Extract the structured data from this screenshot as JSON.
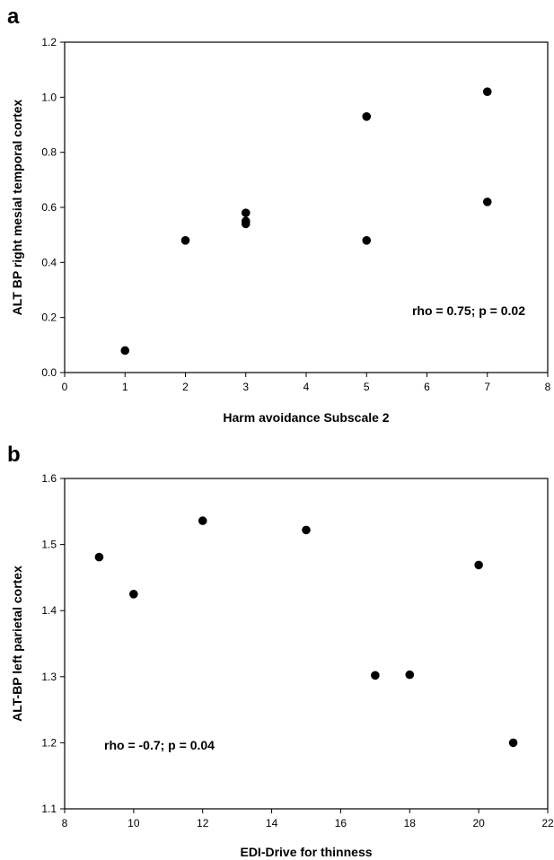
{
  "chart_data": [
    {
      "type": "scatter",
      "panel": "a",
      "xlabel": "Harm avoidance Subscale 2",
      "ylabel": "ALT BP right mesial temporal cortex",
      "xlim": [
        0,
        8
      ],
      "ylim": [
        0.0,
        1.2
      ],
      "xticks": [
        "0",
        "1",
        "2",
        "3",
        "4",
        "5",
        "6",
        "7",
        "8"
      ],
      "yticks": [
        "0.0",
        "0.2",
        "0.4",
        "0.6",
        "0.8",
        "1.0",
        "1.2"
      ],
      "annotation": "rho = 0.75; p = 0.02",
      "annotation_position": "bottom-right",
      "grid": false,
      "points": [
        {
          "x": 1,
          "y": 0.08
        },
        {
          "x": 2,
          "y": 0.48
        },
        {
          "x": 3,
          "y": 0.58
        },
        {
          "x": 3,
          "y": 0.55
        },
        {
          "x": 3,
          "y": 0.54
        },
        {
          "x": 5,
          "y": 0.93
        },
        {
          "x": 5,
          "y": 0.48
        },
        {
          "x": 7,
          "y": 1.02
        },
        {
          "x": 7,
          "y": 0.62
        }
      ]
    },
    {
      "type": "scatter",
      "panel": "b",
      "xlabel": "EDI-Drive for thinness",
      "ylabel": "ALT-BP left parietal cortex",
      "xlim": [
        8,
        22
      ],
      "ylim": [
        1.1,
        1.6
      ],
      "xticks": [
        "8",
        "10",
        "12",
        "14",
        "16",
        "18",
        "20",
        "22"
      ],
      "yticks": [
        "1.1",
        "1.2",
        "1.3",
        "1.4",
        "1.5",
        "1.6"
      ],
      "annotation": "rho = -0.7; p = 0.04",
      "annotation_position": "bottom-left",
      "grid": false,
      "points": [
        {
          "x": 9,
          "y": 1.481
        },
        {
          "x": 10,
          "y": 1.425
        },
        {
          "x": 12,
          "y": 1.536
        },
        {
          "x": 15,
          "y": 1.522
        },
        {
          "x": 17,
          "y": 1.302
        },
        {
          "x": 18,
          "y": 1.303
        },
        {
          "x": 20,
          "y": 1.469
        },
        {
          "x": 21,
          "y": 1.2
        }
      ]
    }
  ]
}
